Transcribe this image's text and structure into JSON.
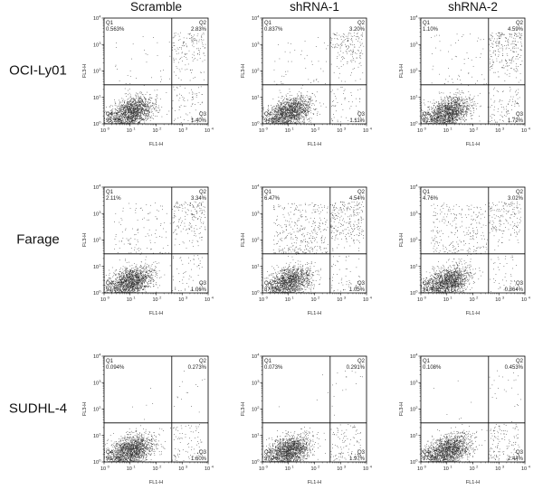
{
  "chart_data": {
    "type": "scatter",
    "columns": [
      "Scramble",
      "shRNA-1",
      "shRNA-2"
    ],
    "rows": [
      "OCI-Ly01",
      "Farage",
      "SUDHL-4"
    ],
    "xlabel": "FL1-H",
    "ylabel": "FL3-H",
    "scale": "log",
    "xlim": [
      1,
      10000
    ],
    "ylim": [
      1,
      10000
    ],
    "tick_base": "10",
    "tick_exponents": [
      "0",
      "1",
      "2",
      "3",
      "4"
    ],
    "quadrant_names": [
      "Q1",
      "Q2",
      "Q3",
      "Q4"
    ],
    "point_color": "#333333",
    "panels": [
      {
        "row": "OCI-Ly01",
        "column": "Scramble",
        "gate_x": 400,
        "gate_y": 30,
        "quadrants": {
          "Q1": "0.563%",
          "Q2": "2.83%",
          "Q3": "1.40%",
          "Q4": "95.2%"
        }
      },
      {
        "row": "OCI-Ly01",
        "column": "shRNA-1",
        "gate_x": 400,
        "gate_y": 30,
        "quadrants": {
          "Q1": "0.837%",
          "Q2": "3.20%",
          "Q3": "1.11%",
          "Q4": "94.9%"
        }
      },
      {
        "row": "OCI-Ly01",
        "column": "shRNA-2",
        "gate_x": 400,
        "gate_y": 30,
        "quadrants": {
          "Q1": "1.10%",
          "Q2": "4.59%",
          "Q3": "1.72%",
          "Q4": "92.6%"
        }
      },
      {
        "row": "Farage",
        "column": "Scramble",
        "gate_x": 400,
        "gate_y": 30,
        "quadrants": {
          "Q1": "2.11%",
          "Q2": "3.34%",
          "Q3": "1.06%",
          "Q4": "93.5%"
        }
      },
      {
        "row": "Farage",
        "column": "shRNA-1",
        "gate_x": 400,
        "gate_y": 30,
        "quadrants": {
          "Q1": "6.47%",
          "Q2": "4.54%",
          "Q3": "1.05%",
          "Q4": "87.9%"
        }
      },
      {
        "row": "Farage",
        "column": "shRNA-2",
        "gate_x": 400,
        "gate_y": 30,
        "quadrants": {
          "Q1": "4.76%",
          "Q2": "3.02%",
          "Q3": "0.864%",
          "Q4": "91.4%"
        }
      },
      {
        "row": "SUDHL-4",
        "column": "Scramble",
        "gate_x": 400,
        "gate_y": 30,
        "quadrants": {
          "Q1": "0.094%",
          "Q2": "0.273%",
          "Q3": "1.60%",
          "Q4": "98.0%"
        }
      },
      {
        "row": "SUDHL-4",
        "column": "shRNA-1",
        "gate_x": 400,
        "gate_y": 30,
        "quadrants": {
          "Q1": "0.073%",
          "Q2": "0.291%",
          "Q3": "1.97%",
          "Q4": "97.7%"
        }
      },
      {
        "row": "SUDHL-4",
        "column": "shRNA-2",
        "gate_x": 400,
        "gate_y": 30,
        "quadrants": {
          "Q1": "0.108%",
          "Q2": "0.453%",
          "Q3": "2.44%",
          "Q4": "97.0%"
        }
      }
    ]
  }
}
